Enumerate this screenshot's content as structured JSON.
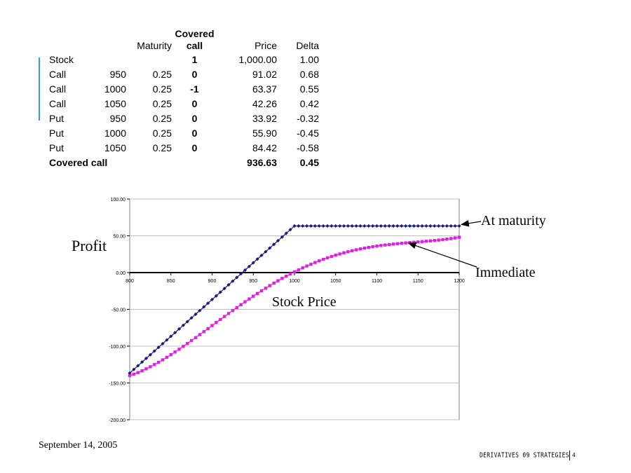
{
  "positions": {
    "headers": {
      "name": "",
      "strike": "",
      "maturity": "Maturity",
      "covered_top": "Covered",
      "covered_bottom": "call",
      "price": "Price",
      "delta": "Delta"
    },
    "rows": [
      {
        "name": "Stock",
        "strike": "",
        "maturity": "",
        "covered": "1",
        "price": "1,000.00",
        "delta": "1.00"
      },
      {
        "name": "Call",
        "strike": "950",
        "maturity": "0.25",
        "covered": "0",
        "price": "91.02",
        "delta": "0.68"
      },
      {
        "name": "Call",
        "strike": "1000",
        "maturity": "0.25",
        "covered": "-1",
        "price": "63.37",
        "delta": "0.55"
      },
      {
        "name": "Call",
        "strike": "1050",
        "maturity": "0.25",
        "covered": "0",
        "price": "42.26",
        "delta": "0.42"
      },
      {
        "name": "Put",
        "strike": "950",
        "maturity": "0.25",
        "covered": "0",
        "price": "33.92",
        "delta": "-0.32"
      },
      {
        "name": "Put",
        "strike": "1000",
        "maturity": "0.25",
        "covered": "0",
        "price": "55.90",
        "delta": "-0.45"
      },
      {
        "name": "Put",
        "strike": "1050",
        "maturity": "0.25",
        "covered": "0",
        "price": "84.42",
        "delta": "-0.58"
      }
    ],
    "total": {
      "name": "Covered call",
      "price": "936.63",
      "delta": "0.45"
    }
  },
  "chart_data": {
    "type": "line",
    "xlabel": "Stock Price",
    "ylabel": "Profit",
    "xlim": [
      800,
      1200
    ],
    "ylim": [
      -200,
      100
    ],
    "x_ticks": [
      "800",
      "850",
      "900",
      "950",
      "1000",
      "1050",
      "1100",
      "1150",
      "1200"
    ],
    "y_ticks": [
      "100.00",
      "50.00",
      "0.00",
      "-50.00",
      "-100.00",
      "-150.00",
      "-200.00"
    ],
    "grid": true,
    "legend": "none",
    "x_step": 5,
    "series": [
      {
        "name": "At maturity",
        "color": "#1a1a80",
        "marker": "diamond",
        "model": "covered_call_payoff",
        "anchors": [
          [
            800,
            -136.63
          ],
          [
            1000,
            63.37
          ],
          [
            1200,
            63.37
          ]
        ]
      },
      {
        "name": "Immediate",
        "color": "#e020e0",
        "marker": "square",
        "model": "covered_call_value_now",
        "anchors": [
          [
            800,
            -140
          ],
          [
            900,
            -72
          ],
          [
            1000,
            1
          ],
          [
            1100,
            36
          ],
          [
            1200,
            48
          ]
        ]
      }
    ],
    "annotations": [
      {
        "text": "At maturity",
        "points_to": [
          1200,
          63.37
        ]
      },
      {
        "text": "Immediate",
        "points_to": [
          1135,
          42
        ]
      }
    ]
  },
  "footer": {
    "date": "September 14, 2005",
    "title": "DERIVATIVES 09 STRATEGIES",
    "page": "4"
  },
  "colors": {
    "accent": "#3a9ad1",
    "grid": "#c0c0c0",
    "axis": "#000000"
  }
}
